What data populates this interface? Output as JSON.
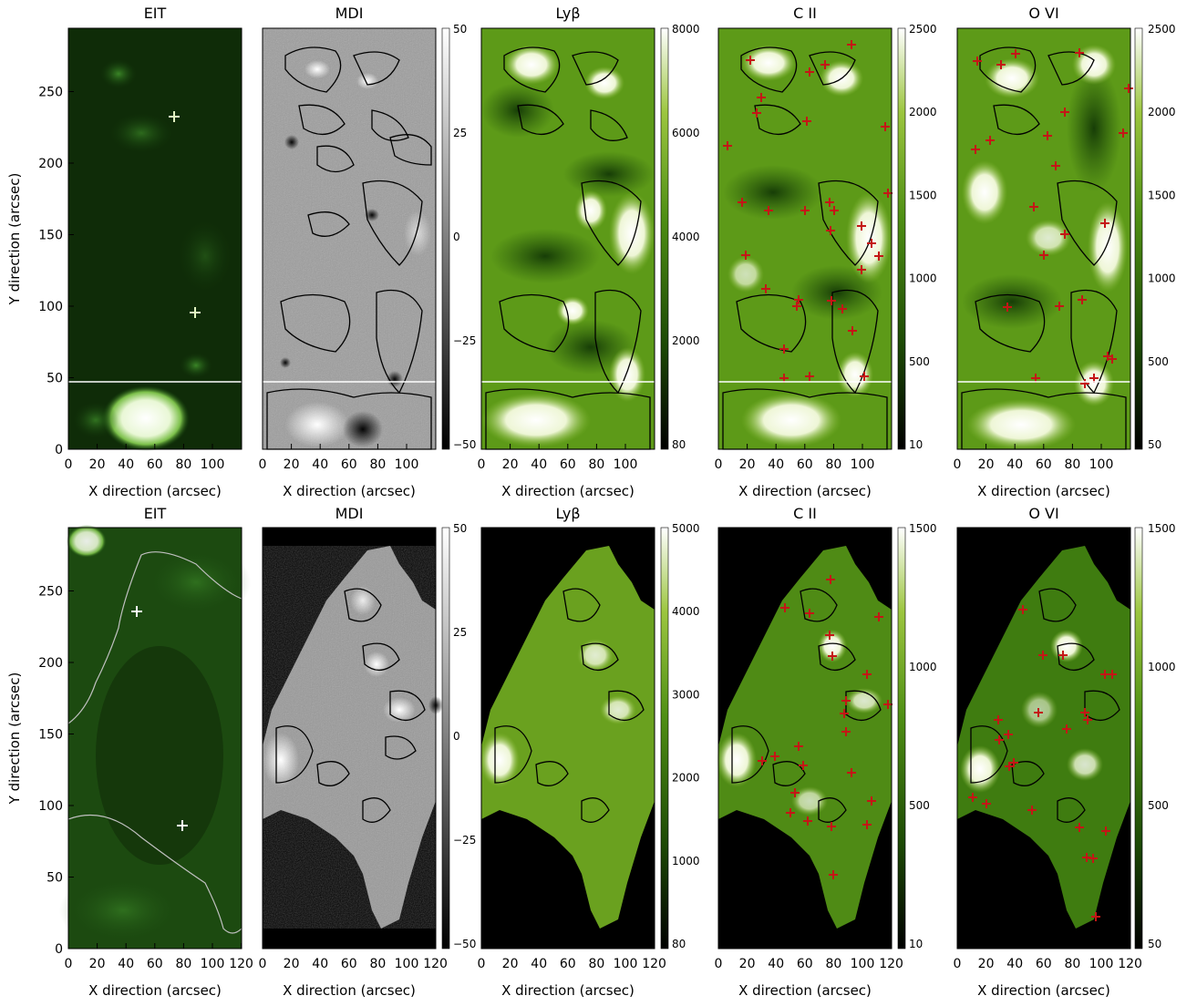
{
  "figure": {
    "rows": [
      {
        "row": "top",
        "panels": [
          {
            "id": "eit",
            "title": "EIT",
            "xlabel": "X direction (arcsec)",
            "ylabel": "Y direction (arcsec)",
            "xticks": [
              "0",
              "20",
              "40",
              "60",
              "80",
              "100"
            ],
            "yticks": [
              "0",
              "50",
              "100",
              "150",
              "200",
              "250"
            ],
            "colorbar": null,
            "crosses": "light"
          },
          {
            "id": "mdi",
            "title": "MDI",
            "xlabel": "X direction (arcsec)",
            "xticks": [
              "0",
              "20",
              "40",
              "60",
              "80",
              "100"
            ],
            "colorbar": {
              "labels": [
                "50",
                "25",
                "0",
                "−25",
                "−50"
              ],
              "scale": "gray"
            }
          },
          {
            "id": "lyb",
            "title": "Lyβ",
            "xlabel": "X direction (arcsec)",
            "xticks": [
              "0",
              "20",
              "40",
              "60",
              "80",
              "100"
            ],
            "colorbar": {
              "labels": [
                "8000",
                "6000",
                "4000",
                "2000",
                "80"
              ],
              "scale": "green"
            }
          },
          {
            "id": "cii",
            "title": "C II",
            "xlabel": "X direction (arcsec)",
            "xticks": [
              "0",
              "20",
              "40",
              "60",
              "80",
              "100"
            ],
            "colorbar": {
              "labels": [
                "2500",
                "2000",
                "1500",
                "1000",
                "500",
                "10"
              ],
              "scale": "green"
            },
            "crosses": "red"
          },
          {
            "id": "ovi",
            "title": "O VI",
            "xlabel": "X direction (arcsec)",
            "xticks": [
              "0",
              "20",
              "40",
              "60",
              "80",
              "100"
            ],
            "colorbar": {
              "labels": [
                "2500",
                "2000",
                "1500",
                "1000",
                "500",
                "50"
              ],
              "scale": "green"
            },
            "crosses": "red"
          }
        ]
      },
      {
        "row": "bottom",
        "panels": [
          {
            "id": "eit",
            "title": "EIT",
            "xlabel": "X direction (arcsec)",
            "ylabel": "Y direction (arcsec)",
            "xticks": [
              "0",
              "20",
              "40",
              "60",
              "80",
              "100",
              "120"
            ],
            "yticks": [
              "0",
              "50",
              "100",
              "150",
              "200",
              "250"
            ],
            "colorbar": null,
            "crosses": "white"
          },
          {
            "id": "mdi",
            "title": "MDI",
            "xlabel": "X direction (arcsec)",
            "xticks": [
              "0",
              "20",
              "40",
              "60",
              "80",
              "100",
              "120"
            ],
            "colorbar": {
              "labels": [
                "50",
                "25",
                "0",
                "−25",
                "−50"
              ],
              "scale": "gray"
            }
          },
          {
            "id": "lyb",
            "title": "Lyβ",
            "xlabel": "X direction (arcsec)",
            "xticks": [
              "0",
              "20",
              "40",
              "60",
              "80",
              "100",
              "120"
            ],
            "colorbar": {
              "labels": [
                "5000",
                "4000",
                "3000",
                "2000",
                "1000",
                "80"
              ],
              "scale": "green"
            }
          },
          {
            "id": "cii",
            "title": "C II",
            "xlabel": "X direction (arcsec)",
            "xticks": [
              "0",
              "20",
              "40",
              "60",
              "80",
              "100",
              "120"
            ],
            "colorbar": {
              "labels": [
                "1500",
                "1000",
                "500",
                "10"
              ],
              "scale": "green"
            },
            "crosses": "red"
          },
          {
            "id": "ovi",
            "title": "O VI",
            "xlabel": "X direction (arcsec)",
            "xticks": [
              "0",
              "20",
              "40",
              "60",
              "80",
              "100",
              "120"
            ],
            "colorbar": {
              "labels": [
                "1500",
                "1000",
                "500",
                "50"
              ],
              "scale": "green"
            },
            "crosses": "red"
          }
        ]
      }
    ],
    "colors": {
      "eit_bright": "#f4fbe2",
      "eit_dark": "#0c2a07",
      "green_bright": "#eef6d6",
      "green_mid": "#6fa81c",
      "green_dark": "#1b4a07",
      "cross_red": "#c41616",
      "cross_light": "#e3f6c2",
      "contour": "#000000",
      "cutline": "#ffffff"
    }
  }
}
